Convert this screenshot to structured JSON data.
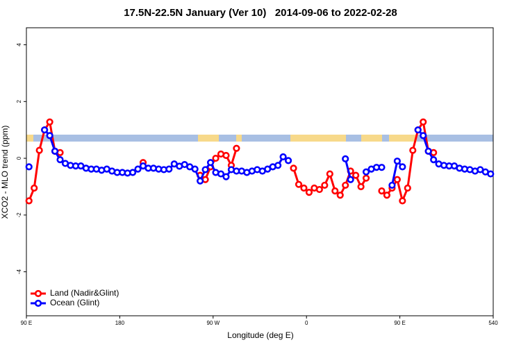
{
  "chart_data": {
    "type": "line",
    "title": "17.5N-22.5N January (Ver 10)   2014-09-06 to 2022-02-28",
    "xlabel": "Longitude (deg E)",
    "ylabel": "XCO2 - MLO trend (ppm)",
    "x": [
      92.5,
      97.5,
      102.5,
      107.5,
      112.5,
      117.5,
      122.5,
      127.5,
      132.5,
      137.5,
      142.5,
      147.5,
      152.5,
      157.5,
      162.5,
      167.5,
      172.5,
      177.5,
      182.5,
      187.5,
      192.5,
      197.5,
      202.5,
      207.5,
      212.5,
      217.5,
      222.5,
      227.5,
      232.5,
      237.5,
      242.5,
      247.5,
      252.5,
      257.5,
      262.5,
      267.5,
      272.5,
      277.5,
      282.5,
      287.5,
      292.5,
      297.5,
      302.5,
      307.5,
      312.5,
      317.5,
      322.5,
      327.5,
      332.5,
      337.5,
      342.5,
      347.5,
      352.5,
      357.5,
      362.5,
      367.5,
      372.5,
      377.5,
      382.5,
      387.5,
      392.5,
      397.5,
      402.5,
      407.5,
      412.5,
      417.5,
      422.5,
      427.5,
      432.5,
      437.5,
      442.5,
      447.5,
      452.5,
      457.5,
      462.5,
      467.5,
      472.5,
      477.5,
      482.5,
      487.5,
      492.5,
      497.5,
      502.5,
      507.5,
      512.5,
      517.5,
      522.5,
      527.5,
      532.5,
      537.5
    ],
    "series": [
      {
        "name": "Land (Nadir&Glint)",
        "color": "#ff0000",
        "values": [
          -1.5,
          -1.05,
          0.28,
          1.0,
          1.28,
          0.25,
          0.2,
          null,
          null,
          null,
          null,
          null,
          null,
          null,
          null,
          null,
          null,
          null,
          null,
          null,
          null,
          null,
          -0.15,
          null,
          null,
          null,
          null,
          null,
          null,
          null,
          null,
          null,
          null,
          -0.6,
          -0.75,
          -0.3,
          0.0,
          0.15,
          0.1,
          -0.25,
          0.35,
          null,
          null,
          null,
          null,
          null,
          null,
          null,
          null,
          null,
          null,
          -0.35,
          -0.92,
          -1.05,
          -1.2,
          -1.05,
          -1.1,
          -0.95,
          -0.55,
          -1.15,
          -1.3,
          -0.95,
          -0.45,
          -0.6,
          -1.0,
          -0.7,
          null,
          null,
          -1.15,
          -1.3,
          -1.05,
          -0.75,
          -1.5,
          -1.05,
          0.28,
          1.0,
          1.28,
          0.25,
          0.2,
          null,
          null,
          null,
          null,
          null,
          null,
          null,
          null,
          null,
          null,
          null
        ]
      },
      {
        "name": "Ocean (Glint)",
        "color": "#0000ff",
        "values": [
          -0.3,
          null,
          null,
          1.0,
          0.8,
          0.25,
          -0.05,
          -0.18,
          -0.25,
          -0.27,
          -0.27,
          -0.35,
          -0.38,
          -0.38,
          -0.42,
          -0.38,
          -0.45,
          -0.5,
          -0.5,
          -0.52,
          -0.5,
          -0.38,
          -0.27,
          -0.35,
          -0.35,
          -0.38,
          -0.4,
          -0.38,
          -0.2,
          -0.28,
          -0.22,
          -0.3,
          -0.38,
          -0.8,
          -0.4,
          -0.15,
          -0.5,
          -0.55,
          -0.65,
          -0.4,
          -0.45,
          -0.45,
          -0.5,
          -0.45,
          -0.4,
          -0.45,
          -0.38,
          -0.3,
          -0.25,
          0.05,
          -0.08,
          null,
          null,
          null,
          null,
          null,
          null,
          null,
          null,
          null,
          null,
          -0.02,
          -0.75,
          null,
          null,
          -0.48,
          -0.38,
          -0.32,
          -0.32,
          null,
          -0.95,
          -0.1,
          -0.3,
          null,
          null,
          1.0,
          0.8,
          0.25,
          -0.05,
          -0.2,
          -0.25,
          -0.27,
          -0.27,
          -0.35,
          -0.38,
          -0.4,
          -0.45,
          -0.4,
          -0.48,
          -0.55
        ]
      }
    ],
    "xlim": [
      90,
      540
    ],
    "xticks": [
      {
        "value": 90,
        "label": "90 E"
      },
      180,
      {
        "value": 270,
        "label": "90 W"
      },
      {
        "value": 360,
        "label": "0"
      },
      {
        "value": 450,
        "label": "90 E"
      },
      540
    ],
    "ylim": [
      -5.55,
      4.6
    ],
    "yticks": [
      -4,
      -2,
      0,
      2,
      4
    ],
    "legend": "bottom-left"
  }
}
